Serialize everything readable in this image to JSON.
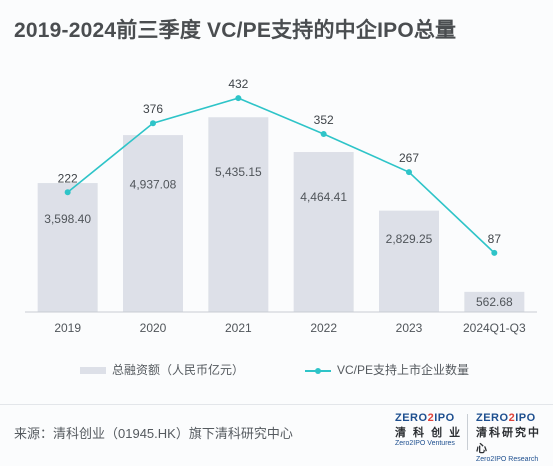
{
  "title": "2019-2024前三季度 VC/PE支持的中企IPO总量",
  "chart_data": {
    "type": "bar",
    "categories": [
      "2019",
      "2020",
      "2021",
      "2022",
      "2023",
      "2024Q1-Q3"
    ],
    "series": [
      {
        "name": "总融资额（人民币亿元）",
        "type": "bar",
        "values": [
          3598.4,
          4937.08,
          5435.15,
          4464.41,
          2829.25,
          562.68
        ],
        "labels": [
          "3,598.40",
          "4,937.08",
          "5,435.15",
          "4,464.41",
          "2,829.25",
          "562.68"
        ],
        "color": "#dde0e8"
      },
      {
        "name": "VC/PE支持上市企业数量",
        "type": "line",
        "values": [
          222,
          376,
          432,
          352,
          267,
          87
        ],
        "labels": [
          "222",
          "376",
          "432",
          "352",
          "267",
          "87"
        ],
        "color": "#2ec4c8"
      }
    ]
  },
  "legend": {
    "bar_label": "总融资额（人民币亿元）",
    "line_label": "VC/PE支持上市企业数量"
  },
  "footer": {
    "source": "来源：清科创业（01945.HK）旗下清科研究中心",
    "logo1": {
      "mark_a": "ZERO",
      "mark_b": "2",
      "mark_c": "IPO",
      "cn": "清 科 创 业",
      "en": "Zero2IPO Ventures"
    },
    "logo2": {
      "mark_a": "ZERO",
      "mark_b": "2",
      "mark_c": "IPO",
      "cn": "清科研究中心",
      "en": "Zero2IPO Research"
    }
  }
}
